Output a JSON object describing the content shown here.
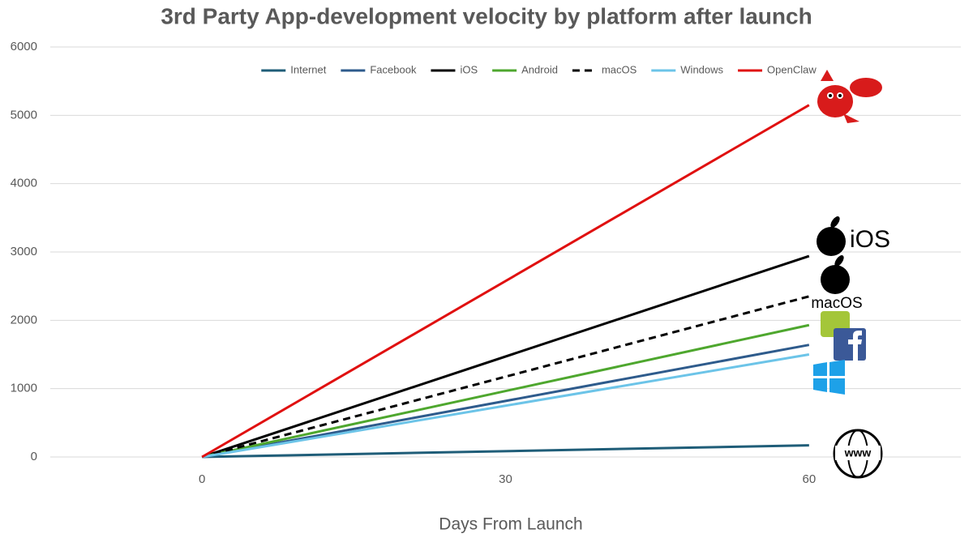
{
  "chart_data": {
    "type": "line",
    "title": "3rd Party App-development velocity by platform after launch",
    "x_label": "Days From Launch",
    "x": [
      0,
      60
    ],
    "series": [
      {
        "name": "Internet",
        "color": "#1f5d78",
        "values": [
          0,
          170
        ]
      },
      {
        "name": "Facebook",
        "color": "#2e5b8c",
        "values": [
          0,
          1640
        ]
      },
      {
        "name": "iOS",
        "color": "#000000",
        "values": [
          0,
          2940
        ]
      },
      {
        "name": "Android",
        "color": "#4ea72e",
        "values": [
          0,
          1930
        ]
      },
      {
        "name": "macOS",
        "color": "#000000",
        "linestyle": "dashed",
        "values": [
          0,
          2350
        ]
      },
      {
        "name": "Windows",
        "color": "#6cc4e8",
        "values": [
          0,
          1500
        ]
      },
      {
        "name": "OpenClaw",
        "color": "#e01010",
        "values": [
          0,
          5150
        ]
      }
    ],
    "xlim": [
      -15,
      75
    ],
    "xticks": [
      0,
      30,
      60
    ],
    "ylim": [
      0,
      6000
    ],
    "yticks": [
      0,
      1000,
      2000,
      3000,
      4000,
      5000,
      6000
    ],
    "grid": true,
    "legend": "top",
    "annotations": [
      "iOS",
      "macOS",
      "www"
    ]
  }
}
